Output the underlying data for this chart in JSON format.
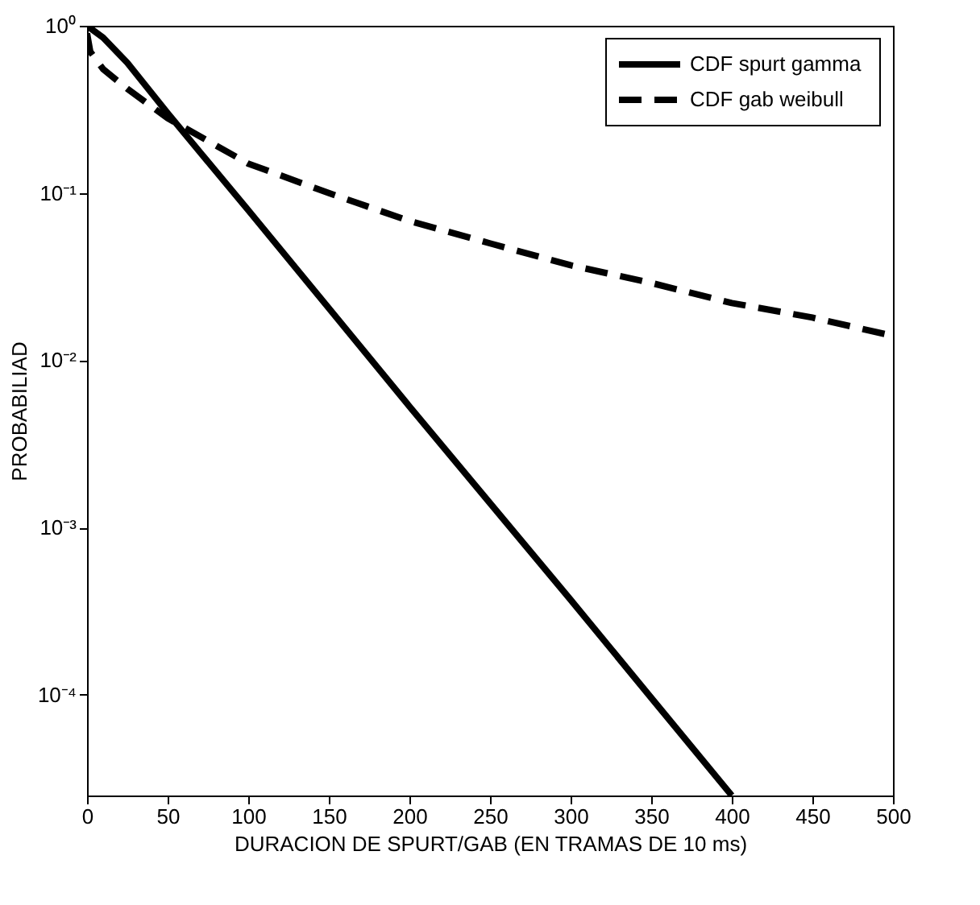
{
  "chart_data": {
    "type": "line",
    "xlabel": "DURACION DE SPURT/GAB (EN TRAMAS DE 10 ms)",
    "ylabel": "PROBABILIAD",
    "log": "y",
    "grid": false,
    "legend": "top right",
    "marker": "none",
    "xlim": [
      0,
      500
    ],
    "xticks": [
      0,
      50,
      100,
      150,
      200,
      250,
      300,
      350,
      400,
      450,
      500
    ],
    "ylim": [
      2.5e-05,
      1
    ],
    "yticks": [
      {
        "value": 1,
        "label": "10⁰"
      },
      {
        "value": 0.1,
        "label": "10⁻¹"
      },
      {
        "value": 0.01,
        "label": "10⁻²"
      },
      {
        "value": 0.001,
        "label": "10⁻³"
      },
      {
        "value": 0.0001,
        "label": "10⁻⁴"
      }
    ],
    "series": [
      {
        "name": "CDF spurt gamma",
        "color": "#000000",
        "line_style": "solid",
        "x": [
          0,
          10,
          25,
          50,
          100,
          150,
          200,
          250,
          300,
          350,
          400
        ],
        "values": [
          1.0,
          0.85,
          0.6,
          0.3,
          0.079,
          0.0205,
          0.0053,
          0.0014,
          0.00037,
          9.6e-05,
          2.5e-05
        ]
      },
      {
        "name": "CDF gab weibull",
        "color": "#000000",
        "line_style": "dashed",
        "x": [
          0,
          2,
          10,
          25,
          50,
          100,
          150,
          200,
          250,
          300,
          350,
          400,
          450,
          500
        ],
        "values": [
          0.9,
          0.7,
          0.55,
          0.42,
          0.28,
          0.15,
          0.1,
          0.068,
          0.05,
          0.037,
          0.029,
          0.022,
          0.018,
          0.014
        ]
      }
    ]
  }
}
